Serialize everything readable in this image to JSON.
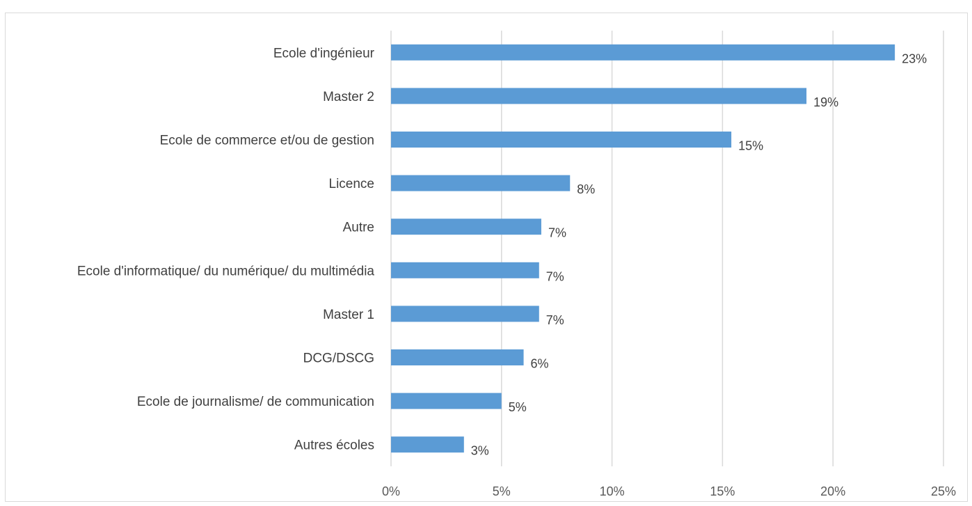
{
  "chart_data": {
    "type": "bar",
    "orientation": "horizontal",
    "title": "",
    "xlabel": "",
    "ylabel": "",
    "categories": [
      "Ecole d'ingénieur",
      "Master 2",
      "Ecole de commerce et/ou de gestion",
      "Licence",
      "Autre ",
      "Ecole d'informatique/ du numérique/ du multimédia",
      "Master 1",
      "DCG/DSCG",
      "Ecole de journalisme/ de communication",
      "Autres écoles"
    ],
    "values": [
      22.8,
      18.8,
      15.4,
      8.1,
      6.8,
      6.7,
      6.7,
      6.0,
      5.0,
      3.3
    ],
    "value_labels": [
      "23%",
      "19%",
      "15%",
      "8%",
      "7%",
      "7%",
      "7%",
      "6%",
      "5%",
      "3%"
    ],
    "xlim": [
      0,
      25
    ],
    "xticks": [
      0,
      5,
      10,
      15,
      20,
      25
    ],
    "xtick_labels": [
      "0%",
      "5%",
      "10%",
      "15%",
      "20%",
      "25%"
    ],
    "grid": "vertical",
    "legend": "none",
    "bar_color": "#5b9bd5"
  }
}
